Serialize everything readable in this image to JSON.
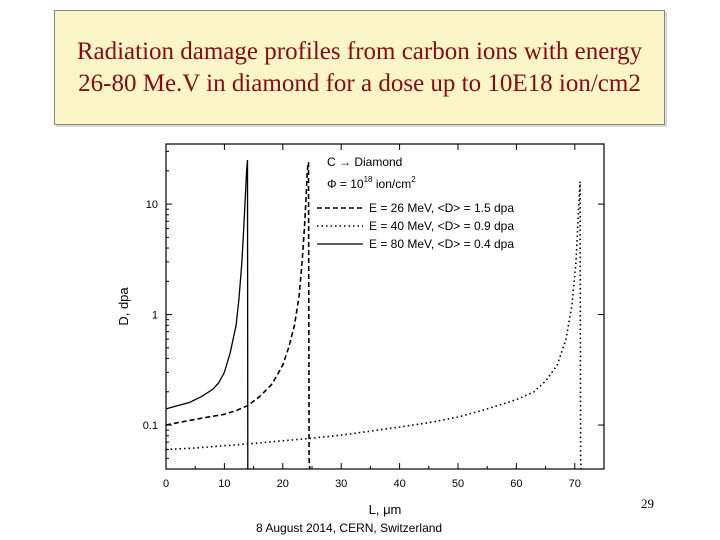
{
  "slide": {
    "title": "Radiation damage profiles from carbon ions with energy 26-80 Me.V in diamond for a dose up to 10E18 ion/cm2",
    "page_number": "29",
    "footer": "8 August 2014, CERN, Switzerland"
  },
  "chart_data": {
    "type": "line",
    "xlabel": "L, μm",
    "ylabel": "D, dpa",
    "xlim": [
      0,
      75
    ],
    "ylim": [
      0.04,
      35
    ],
    "yscale": "log",
    "x_ticks": [
      0,
      10,
      20,
      30,
      40,
      50,
      60,
      70
    ],
    "y_ticks": [
      0.1,
      1,
      10
    ],
    "y_tick_labels": [
      "0.1",
      "1",
      "10"
    ],
    "annotation_lines": [
      "C → Diamond",
      "Φ = 10",
      "18",
      " ion/cm",
      "2"
    ],
    "legend_position": "top-right",
    "series": [
      {
        "name": "E = 26 MeV, <D> = 1.5 dpa",
        "style": "dashed",
        "color": "#000000",
        "x": [
          0,
          2,
          4,
          6,
          8,
          10,
          12,
          14,
          16,
          18,
          19,
          20,
          21,
          22,
          22.8,
          23.3,
          23.7,
          24.0,
          24.2,
          24.4,
          24.5,
          24.6
        ],
        "y": [
          0.1,
          0.105,
          0.11,
          0.115,
          0.12,
          0.125,
          0.135,
          0.15,
          0.18,
          0.23,
          0.28,
          0.35,
          0.5,
          0.8,
          1.5,
          3,
          6,
          12,
          20,
          24,
          0.05,
          0.04
        ]
      },
      {
        "name": "E = 40 MeV, <D> = 0.9 dpa",
        "style": "dotted",
        "color": "#000000",
        "x": [
          0,
          5,
          10,
          15,
          20,
          25,
          30,
          35,
          40,
          45,
          50,
          55,
          60,
          63,
          65,
          67,
          68.5,
          69.5,
          70.2,
          70.6,
          70.9,
          71.0,
          71.1
        ],
        "y": [
          0.06,
          0.062,
          0.065,
          0.068,
          0.072,
          0.076,
          0.081,
          0.088,
          0.096,
          0.105,
          0.118,
          0.14,
          0.17,
          0.2,
          0.25,
          0.35,
          0.6,
          1.2,
          3,
          8,
          16,
          0.05,
          0.04
        ]
      },
      {
        "name": "E = 80 MeV, <D> = 0.4 dpa",
        "style": "solid",
        "color": "#000000",
        "x": [
          0,
          2,
          4,
          6,
          8,
          9,
          10,
          11,
          12,
          12.5,
          13,
          13.3,
          13.6,
          13.8,
          13.95,
          14.0
        ],
        "y": [
          0.14,
          0.15,
          0.16,
          0.18,
          0.21,
          0.24,
          0.3,
          0.45,
          0.8,
          1.4,
          3,
          6,
          12,
          20,
          25,
          0.04
        ]
      }
    ]
  }
}
